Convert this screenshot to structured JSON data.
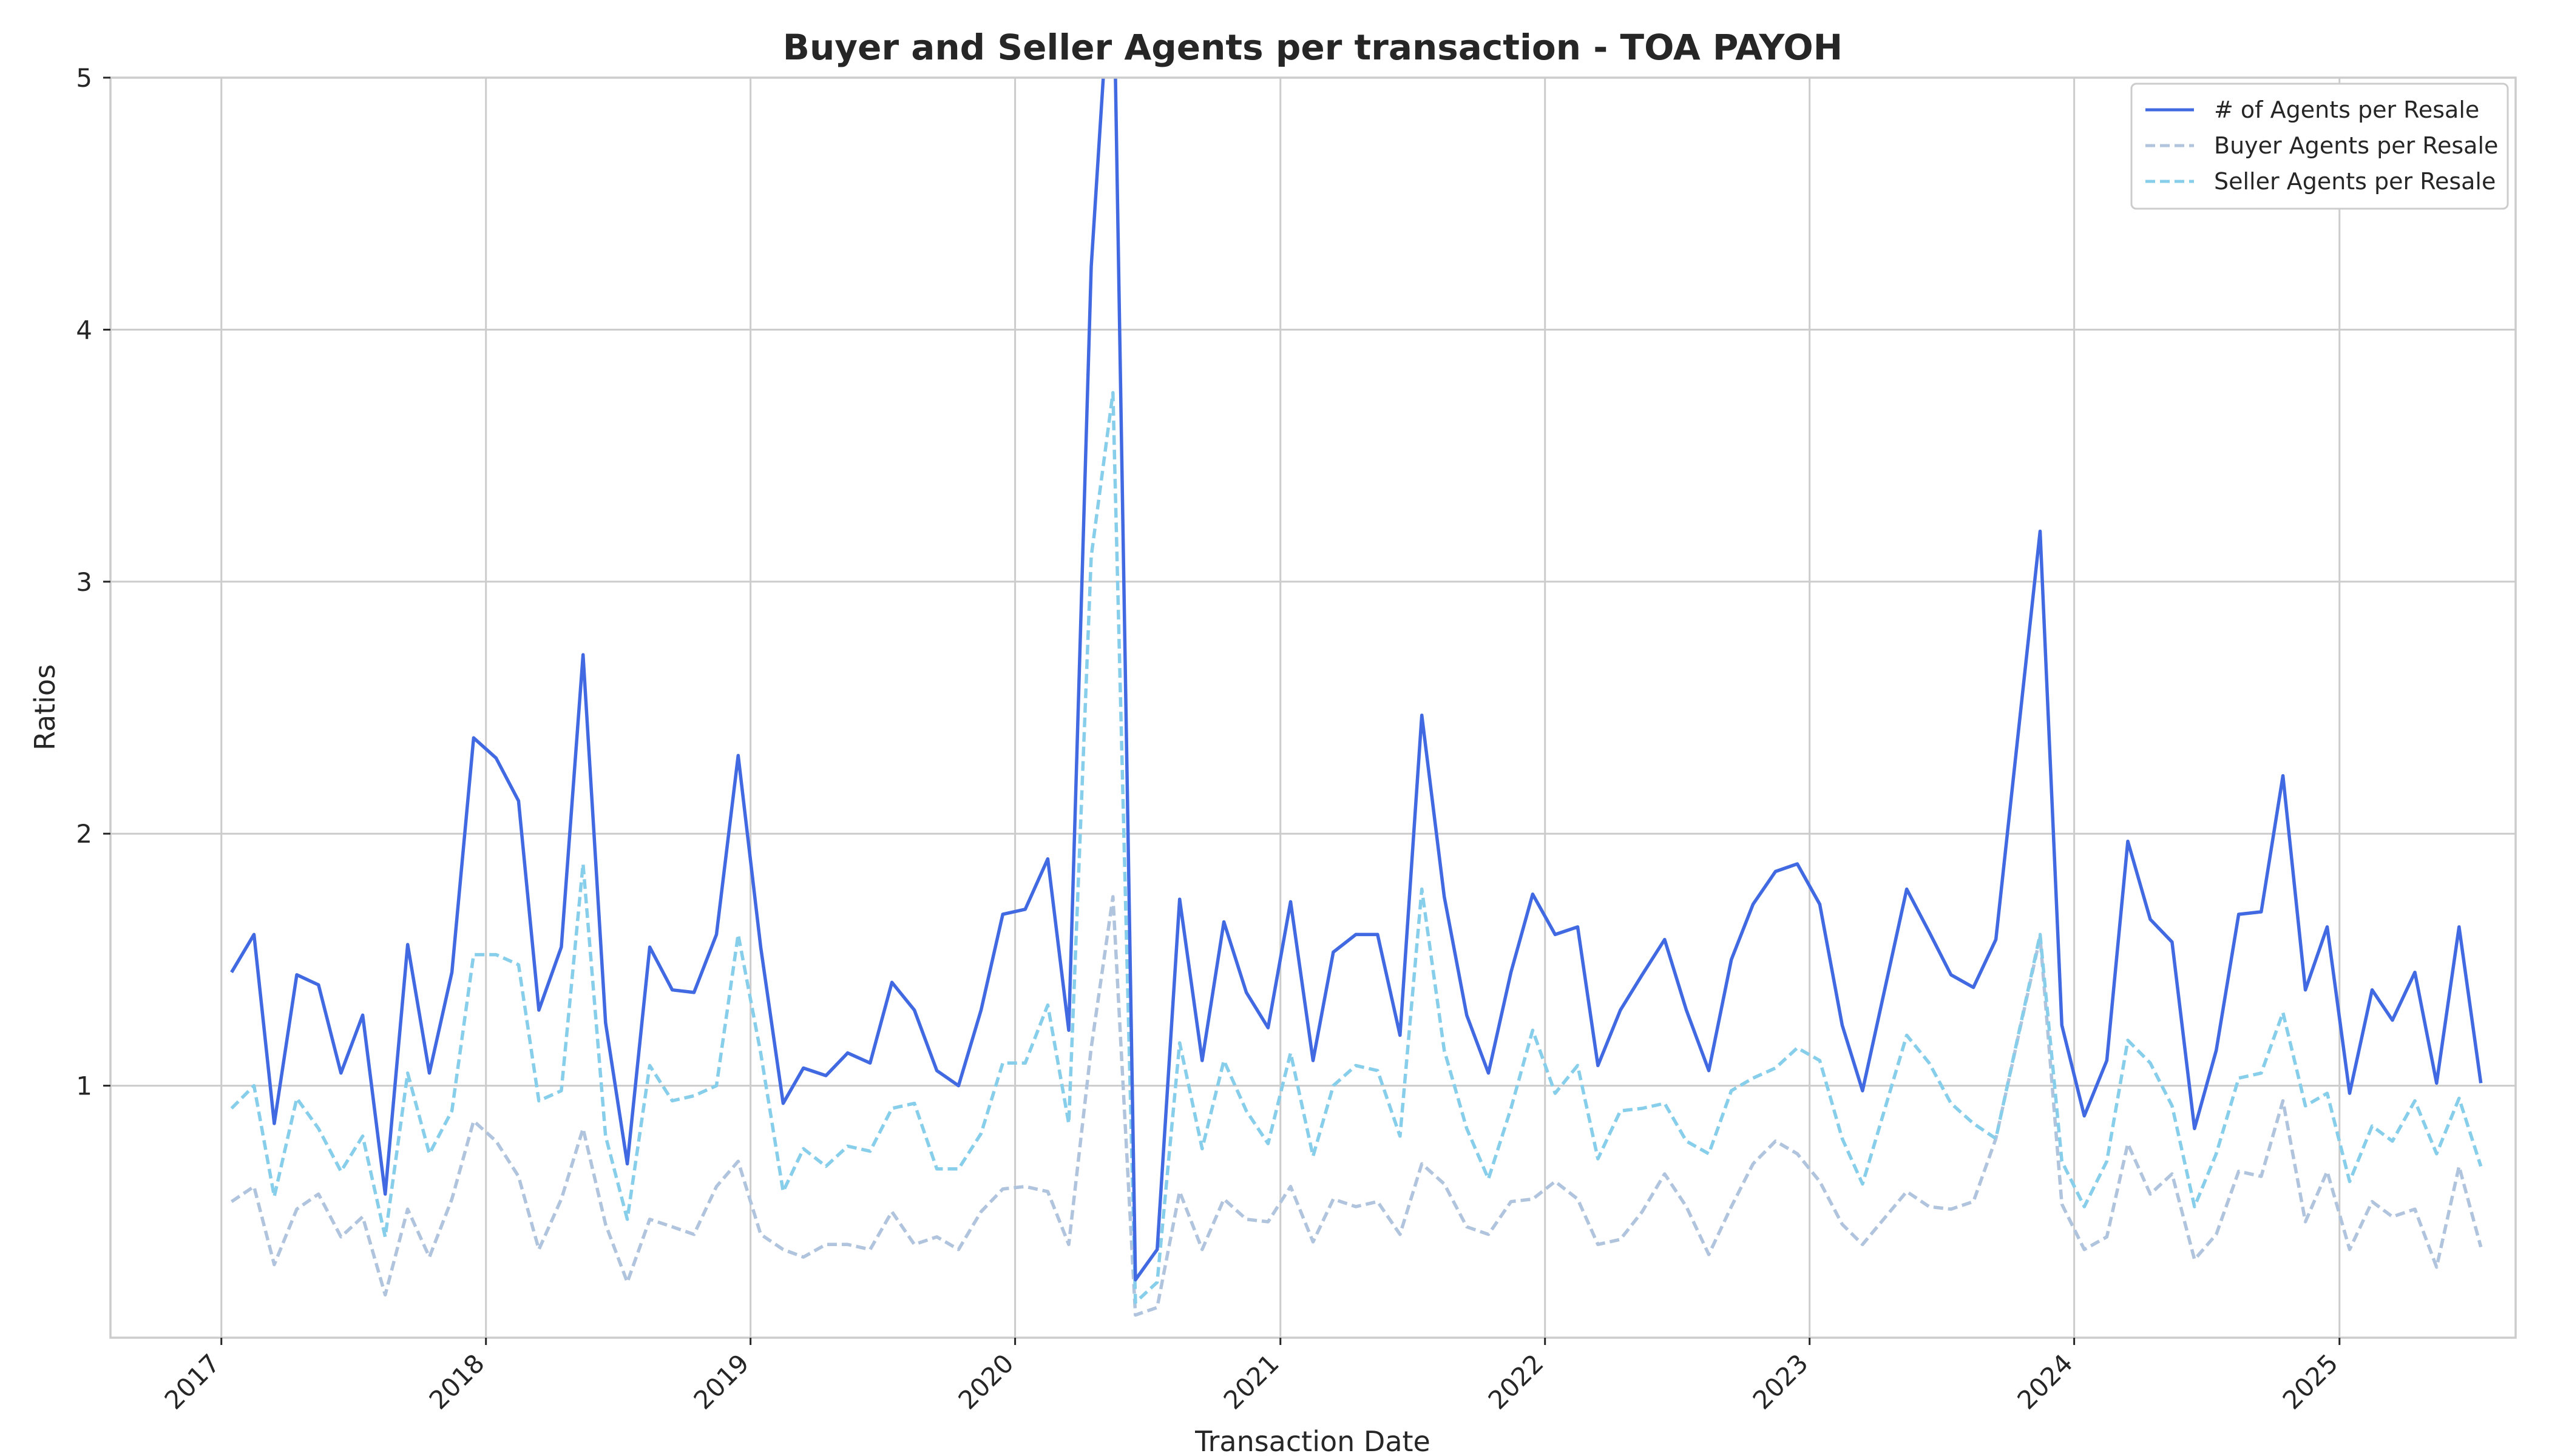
{
  "chart_data": {
    "type": "line",
    "title": "Buyer and Seller Agents per transaction - TOA PAYOH",
    "xlabel": "Transaction Date",
    "ylabel": "Ratios",
    "ylim": [
      0,
      5
    ],
    "xlim": [
      "2016-08-01",
      "2025-09-01"
    ],
    "yticks": [
      1,
      2,
      3,
      4,
      5
    ],
    "xticks": [
      "2017",
      "2018",
      "2019",
      "2020",
      "2021",
      "2022",
      "2023",
      "2024",
      "2025"
    ],
    "grid": true,
    "legend_position": "top-right",
    "x": [
      "2017-01",
      "2017-02",
      "2017-03",
      "2017-04",
      "2017-05",
      "2017-06",
      "2017-07",
      "2017-08",
      "2017-09",
      "2017-10",
      "2017-11",
      "2017-12",
      "2018-01",
      "2018-02",
      "2018-03",
      "2018-04",
      "2018-05",
      "2018-06",
      "2018-07",
      "2018-08",
      "2018-09",
      "2018-10",
      "2018-11",
      "2018-12",
      "2019-01",
      "2019-02",
      "2019-03",
      "2019-04",
      "2019-05",
      "2019-06",
      "2019-07",
      "2019-08",
      "2019-09",
      "2019-10",
      "2019-11",
      "2019-12",
      "2020-01",
      "2020-02",
      "2020-03",
      "2020-04",
      "2020-05",
      "2020-06",
      "2020-07",
      "2020-08",
      "2020-09",
      "2020-10",
      "2020-11",
      "2020-12",
      "2021-01",
      "2021-02",
      "2021-03",
      "2021-04",
      "2021-05",
      "2021-06",
      "2021-07",
      "2021-08",
      "2021-09",
      "2021-10",
      "2021-11",
      "2021-12",
      "2022-01",
      "2022-02",
      "2022-03",
      "2022-04",
      "2022-05",
      "2022-06",
      "2022-07",
      "2022-08",
      "2022-09",
      "2022-10",
      "2022-11",
      "2022-12",
      "2023-01",
      "2023-02",
      "2023-03",
      "2023-05",
      "2023-06",
      "2023-07",
      "2023-08",
      "2023-09",
      "2023-11",
      "2023-12",
      "2024-01",
      "2024-02",
      "2024-03",
      "2024-04",
      "2024-05",
      "2024-06",
      "2024-07",
      "2024-08",
      "2024-09",
      "2024-10",
      "2024-11",
      "2024-12",
      "2025-01",
      "2025-02",
      "2025-03",
      "2025-04",
      "2025-05",
      "2025-06",
      "2025-07"
    ],
    "series": [
      {
        "name": "# of Agents per Resale",
        "color": "#4169e1",
        "style": "solid",
        "values": [
          1.45,
          1.6,
          0.85,
          1.44,
          1.4,
          1.05,
          1.28,
          0.57,
          1.56,
          1.05,
          1.45,
          2.38,
          2.3,
          2.13,
          1.3,
          1.55,
          2.71,
          1.25,
          0.69,
          1.55,
          1.38,
          1.37,
          1.6,
          2.31,
          1.55,
          0.93,
          1.07,
          1.04,
          1.13,
          1.09,
          1.41,
          1.3,
          1.06,
          1.0,
          1.3,
          1.68,
          1.7,
          1.9,
          1.22,
          4.25,
          5.6,
          0.23,
          0.35,
          1.74,
          1.1,
          1.65,
          1.37,
          1.23,
          1.73,
          1.1,
          1.53,
          1.6,
          1.6,
          1.2,
          2.47,
          1.75,
          1.28,
          1.05,
          1.45,
          1.76,
          1.6,
          1.63,
          1.08,
          1.3,
          1.44,
          1.58,
          1.3,
          1.06,
          1.5,
          1.72,
          1.85,
          1.88,
          1.72,
          1.24,
          0.98,
          1.78,
          1.61,
          1.44,
          1.39,
          1.58,
          3.2,
          1.24,
          0.88,
          1.1,
          1.97,
          1.66,
          1.57,
          0.83,
          1.14,
          1.68,
          1.69,
          2.23,
          1.38,
          1.63,
          0.97,
          1.38,
          1.26,
          1.45,
          1.01,
          1.63,
          1.01
        ]
      },
      {
        "name": "Buyer Agents per Resale",
        "color": "#b0c4de",
        "style": "dashed",
        "values": [
          0.54,
          0.6,
          0.29,
          0.51,
          0.57,
          0.4,
          0.48,
          0.17,
          0.51,
          0.32,
          0.55,
          0.86,
          0.78,
          0.64,
          0.35,
          0.55,
          0.83,
          0.45,
          0.22,
          0.47,
          0.44,
          0.41,
          0.6,
          0.7,
          0.41,
          0.35,
          0.32,
          0.37,
          0.37,
          0.35,
          0.5,
          0.37,
          0.4,
          0.35,
          0.5,
          0.59,
          0.6,
          0.58,
          0.37,
          1.15,
          1.75,
          0.09,
          0.12,
          0.58,
          0.35,
          0.55,
          0.47,
          0.46,
          0.6,
          0.38,
          0.55,
          0.52,
          0.54,
          0.41,
          0.69,
          0.61,
          0.44,
          0.41,
          0.54,
          0.55,
          0.62,
          0.55,
          0.37,
          0.39,
          0.5,
          0.65,
          0.52,
          0.33,
          0.52,
          0.69,
          0.78,
          0.73,
          0.62,
          0.45,
          0.37,
          0.58,
          0.52,
          0.51,
          0.54,
          0.79,
          1.59,
          0.53,
          0.35,
          0.4,
          0.77,
          0.57,
          0.65,
          0.31,
          0.41,
          0.66,
          0.64,
          0.94,
          0.46,
          0.66,
          0.35,
          0.54,
          0.48,
          0.51,
          0.28,
          0.68,
          0.36
        ]
      },
      {
        "name": "Seller Agents per Resale",
        "color": "#87ceeb",
        "style": "dashed",
        "values": [
          0.91,
          1.0,
          0.56,
          0.95,
          0.83,
          0.66,
          0.8,
          0.4,
          1.05,
          0.73,
          0.9,
          1.52,
          1.52,
          1.48,
          0.94,
          0.98,
          1.88,
          0.8,
          0.47,
          1.08,
          0.94,
          0.96,
          1.0,
          1.6,
          1.13,
          0.58,
          0.75,
          0.68,
          0.76,
          0.74,
          0.91,
          0.93,
          0.67,
          0.67,
          0.81,
          1.09,
          1.09,
          1.32,
          0.85,
          3.1,
          3.75,
          0.14,
          0.22,
          1.17,
          0.75,
          1.1,
          0.9,
          0.77,
          1.13,
          0.72,
          1.0,
          1.08,
          1.06,
          0.8,
          1.78,
          1.14,
          0.83,
          0.63,
          0.91,
          1.22,
          0.97,
          1.08,
          0.71,
          0.9,
          0.91,
          0.93,
          0.78,
          0.73,
          0.98,
          1.03,
          1.07,
          1.15,
          1.1,
          0.79,
          0.61,
          1.2,
          1.09,
          0.93,
          0.85,
          0.79,
          1.6,
          0.7,
          0.52,
          0.7,
          1.18,
          1.09,
          0.92,
          0.52,
          0.73,
          1.03,
          1.05,
          1.29,
          0.92,
          0.97,
          0.62,
          0.84,
          0.78,
          0.94,
          0.73,
          0.95,
          0.68
        ]
      }
    ]
  }
}
